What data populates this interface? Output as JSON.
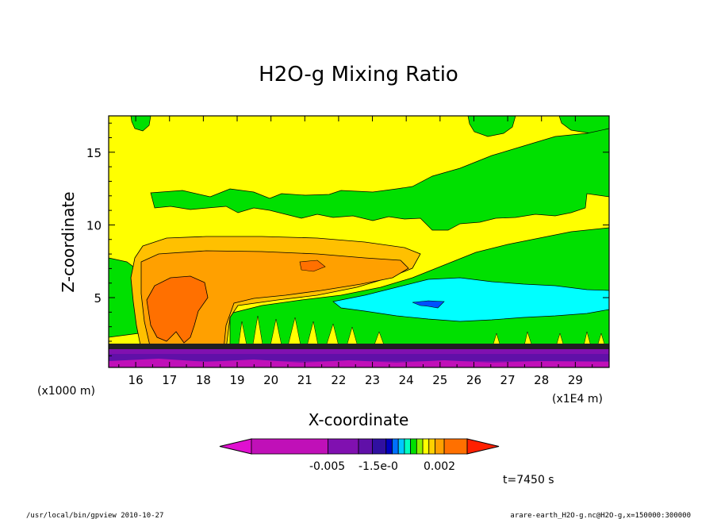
{
  "chart_data": {
    "type": "heatmap",
    "title": "H2O-g Mixing Ratio",
    "xlabel": "X-coordinate",
    "ylabel": "Z-coordinate",
    "x_unit": "(x1E4 m)",
    "y_unit": "(x1000 m)",
    "xlim": [
      15.2,
      30.0
    ],
    "ylim": [
      0.2,
      17.5
    ],
    "x_ticks": [
      "16",
      "17",
      "18",
      "19",
      "20",
      "21",
      "22",
      "23",
      "24",
      "25",
      "26",
      "27",
      "28",
      "29"
    ],
    "y_ticks": [
      "5",
      "10",
      "15"
    ],
    "colorbar_labels": [
      "-0.005",
      "-1.5e-0",
      "0.002"
    ],
    "colorbar_colors": [
      "#e010d0",
      "#c010b8",
      "#8010b0",
      "#6010a8",
      "#3010a0",
      "#0000c0",
      "#0070ff",
      "#00c8ff",
      "#00ffc0",
      "#00e000",
      "#90f000",
      "#ffff00",
      "#ffd000",
      "#ffa000",
      "#ff7000",
      "#ff2000"
    ],
    "timestamp": "t=7450 s",
    "footer_left": "/usr/local/bin/gpview  2010-10-27",
    "footer_right": "arare-earth_H2O-g.nc@H2O-g,x=150000:300000",
    "regions": [
      {
        "level": "yellow",
        "color": "#ffff00",
        "description": "background"
      },
      {
        "level": "green",
        "color": "#00e000",
        "description": "upper cloud band z≈11-13, right lower band z≈2-5"
      },
      {
        "level": "light-orange",
        "color": "#ffc000",
        "description": "anvil z≈5-9, x≈15.8-24"
      },
      {
        "level": "orange",
        "color": "#ffa000",
        "description": "core z≈3-8"
      },
      {
        "level": "dark-orange",
        "color": "#ff7000",
        "description": "updraft z≈1.5-6, x≈16.5-18"
      },
      {
        "level": "cyan",
        "color": "#00ffff",
        "description": "x≈23-30, z≈3-6"
      },
      {
        "level": "purple",
        "color": "#8000b0",
        "description": "surface layer z<1.5"
      }
    ]
  }
}
